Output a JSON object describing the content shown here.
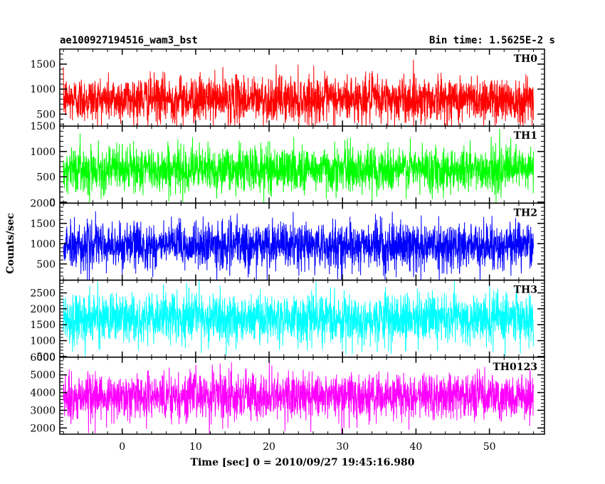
{
  "chart_data": {
    "type": "line",
    "title_left": "ae100927194516_wam3_bst",
    "title_right": "Bin time: 1.5625E-2 s",
    "xlabel": "Time [sec] 0 = 2010/09/27 19:45:16.980",
    "ylabel": "Counts/sec",
    "xlim": [
      -8.5,
      57.5
    ],
    "x_ticks": [
      0,
      10,
      20,
      30,
      40,
      50
    ],
    "x_data_range": [
      -8.0,
      56.0
    ],
    "bin_time": 0.015625,
    "grid": false,
    "panels": [
      {
        "name": "TH0",
        "color": "#ff0000",
        "ylim": [
          260,
          1800
        ],
        "y_ticks": [
          500,
          1000,
          1500
        ],
        "mean": 800,
        "noise_sd": 230,
        "clip_low": 270,
        "clip_high": 1790
      },
      {
        "name": "TH1",
        "color": "#00ff00",
        "ylim": [
          -20,
          1500
        ],
        "y_ticks": [
          0,
          500,
          1000,
          1500
        ],
        "mean": 650,
        "noise_sd": 220,
        "clip_low": -10,
        "clip_high": 1490
      },
      {
        "name": "TH2",
        "color": "#0000ff",
        "ylim": [
          100,
          2000
        ],
        "y_ticks": [
          500,
          1000,
          1500,
          2000
        ],
        "mean": 950,
        "noise_sd": 280,
        "clip_low": 110,
        "clip_high": 1990
      },
      {
        "name": "TH3",
        "color": "#00ffff",
        "ylim": [
          480,
          2900
        ],
        "y_ticks": [
          500,
          1000,
          1500,
          2000,
          2500
        ],
        "mean": 1700,
        "noise_sd": 380,
        "clip_low": 490,
        "clip_high": 2890
      },
      {
        "name": "TH0123",
        "color": "#ff00ff",
        "ylim": [
          1650,
          6000
        ],
        "y_ticks": [
          2000,
          3000,
          4000,
          5000,
          6000
        ],
        "mean": 3800,
        "noise_sd": 650,
        "clip_low": 1660,
        "clip_high": 5990
      }
    ]
  }
}
